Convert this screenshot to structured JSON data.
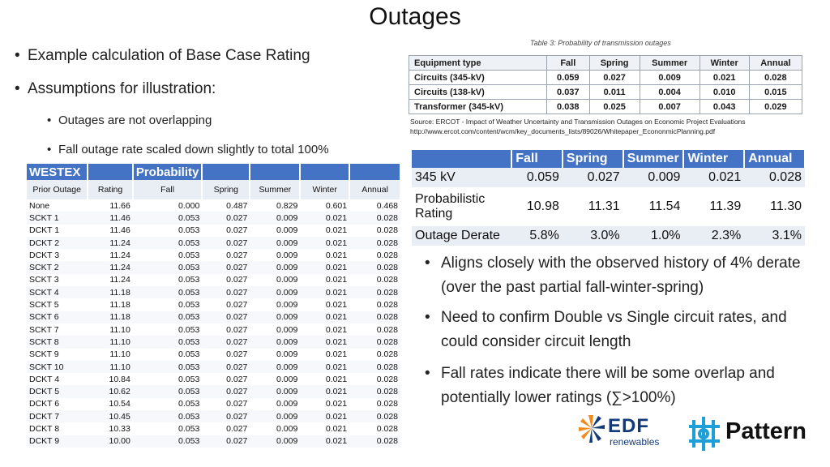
{
  "title": "Outages",
  "bullets": {
    "b1": "Example calculation of Base Case Rating",
    "b2": "Assumptions for illustration:",
    "s1": "Outages are not overlapping",
    "s2": "Fall outage rate scaled down slightly to total 100%"
  },
  "table3": {
    "caption": "Table 3: Probability of transmission outages",
    "header": [
      "Equipment type",
      "Fall",
      "Spring",
      "Summer",
      "Winter",
      "Annual"
    ],
    "rows": [
      [
        "Circuits (345-kV)",
        "0.059",
        "0.027",
        "0.009",
        "0.021",
        "0.028"
      ],
      [
        "Circuits (138-kV)",
        "0.037",
        "0.011",
        "0.004",
        "0.010",
        "0.015"
      ],
      [
        "Transformer (345-kV)",
        "0.038",
        "0.025",
        "0.007",
        "0.043",
        "0.029"
      ]
    ],
    "source1": "Source: ERCOT - Impact of Weather Uncertainty and Transmission Outages on Economic Project Evaluations",
    "source2": "http://www.ercot.com/content/wcm/key_documents_lists/89026/Whitepaper_EcononmicPlanning.pdf"
  },
  "westex": {
    "h1": [
      "WESTEX",
      "",
      "Probability",
      "",
      "",
      "",
      ""
    ],
    "h2": [
      "Prior Outage",
      "Rating",
      "Fall",
      "Spring",
      "Summer",
      "Winter",
      "Annual"
    ],
    "rows": [
      [
        "None",
        "11.66",
        "0.000",
        "0.487",
        "0.829",
        "0.601",
        "0.468"
      ],
      [
        "SCKT 1",
        "11.46",
        "0.053",
        "0.027",
        "0.009",
        "0.021",
        "0.028"
      ],
      [
        "DCKT 1",
        "11.46",
        "0.053",
        "0.027",
        "0.009",
        "0.021",
        "0.028"
      ],
      [
        "DCKT 2",
        "11.24",
        "0.053",
        "0.027",
        "0.009",
        "0.021",
        "0.028"
      ],
      [
        "DCKT 3",
        "11.24",
        "0.053",
        "0.027",
        "0.009",
        "0.021",
        "0.028"
      ],
      [
        "SCKT 2",
        "11.24",
        "0.053",
        "0.027",
        "0.009",
        "0.021",
        "0.028"
      ],
      [
        "SCKT 3",
        "11.24",
        "0.053",
        "0.027",
        "0.009",
        "0.021",
        "0.028"
      ],
      [
        "SCKT 4",
        "11.18",
        "0.053",
        "0.027",
        "0.009",
        "0.021",
        "0.028"
      ],
      [
        "SCKT 5",
        "11.18",
        "0.053",
        "0.027",
        "0.009",
        "0.021",
        "0.028"
      ],
      [
        "SCKT 6",
        "11.18",
        "0.053",
        "0.027",
        "0.009",
        "0.021",
        "0.028"
      ],
      [
        "SCKT 7",
        "11.10",
        "0.053",
        "0.027",
        "0.009",
        "0.021",
        "0.028"
      ],
      [
        "SCKT 8",
        "11.10",
        "0.053",
        "0.027",
        "0.009",
        "0.021",
        "0.028"
      ],
      [
        "SCKT 9",
        "11.10",
        "0.053",
        "0.027",
        "0.009",
        "0.021",
        "0.028"
      ],
      [
        "SCKT 10",
        "11.10",
        "0.053",
        "0.027",
        "0.009",
        "0.021",
        "0.028"
      ],
      [
        "DCKT 4",
        "10.84",
        "0.053",
        "0.027",
        "0.009",
        "0.021",
        "0.028"
      ],
      [
        "DCKT 5",
        "10.62",
        "0.053",
        "0.027",
        "0.009",
        "0.021",
        "0.028"
      ],
      [
        "DCKT 6",
        "10.54",
        "0.053",
        "0.027",
        "0.009",
        "0.021",
        "0.028"
      ],
      [
        "DCKT 7",
        "10.45",
        "0.053",
        "0.027",
        "0.009",
        "0.021",
        "0.028"
      ],
      [
        "DCKT 8",
        "10.33",
        "0.053",
        "0.027",
        "0.009",
        "0.021",
        "0.028"
      ],
      [
        "DCKT 9",
        "10.00",
        "0.053",
        "0.027",
        "0.009",
        "0.021",
        "0.028"
      ]
    ]
  },
  "summary": {
    "header": [
      "",
      "Fall",
      "Spring",
      "Summer",
      "Winter",
      "Annual"
    ],
    "row1": [
      "345 kV",
      "0.059",
      "0.027",
      "0.009",
      "0.021",
      "0.028"
    ],
    "row2_label_a": "Probabilistic",
    "row2_label_b": "Rating",
    "row2": [
      "10.98",
      "11.31",
      "11.54",
      "11.39",
      "11.30"
    ],
    "row3": [
      "Outage Derate",
      "5.8%",
      "3.0%",
      "1.0%",
      "2.3%",
      "3.1%"
    ]
  },
  "right_bullets": [
    "Aligns closely with the observed history of 4% derate (over the past partial fall-winter-spring)",
    "Need to confirm Double vs Single circuit rates, and could consider circuit length",
    "Fall rates indicate there will be some overlap and potentially lower ratings (∑>100%)"
  ],
  "logos": {
    "edf": "EDF",
    "renewables": "renewables",
    "pattern": "Pattern"
  },
  "colors": {
    "header_blue": "#4472c4",
    "edf_blue": "#123a78",
    "edf_orange": "#f08a1c",
    "pattern_blue": "#1f9fd8"
  }
}
